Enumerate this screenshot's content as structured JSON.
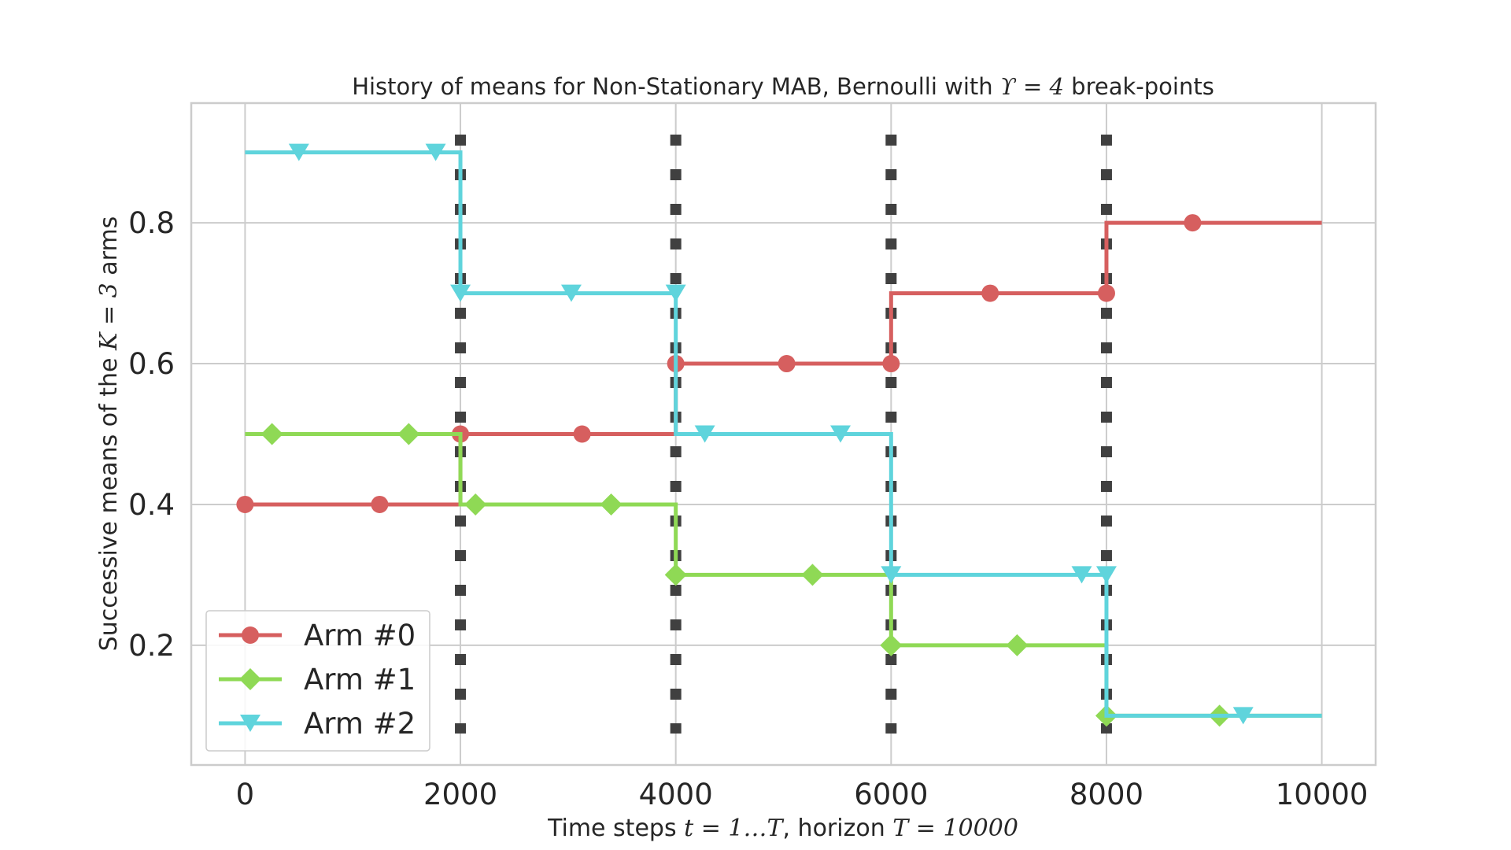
{
  "chart_data": {
    "type": "line",
    "title_parts": {
      "before": "History of means for Non-Stationary MAB, Bernoulli with ",
      "math": "ϒ = 4",
      "after": " break-points"
    },
    "xlabel_parts": {
      "before": "Time steps ",
      "math1": "t = 1…T",
      "middle": ", horizon ",
      "math2": "T = 10000"
    },
    "ylabel_parts": {
      "before": "Successive means of the ",
      "math": "K = 3",
      "after": " arms"
    },
    "xlim": [
      -500,
      10500
    ],
    "ylim": [
      0.03,
      0.97
    ],
    "x_ticks": [
      0,
      2000,
      4000,
      6000,
      8000,
      10000
    ],
    "x_tick_labels": [
      "0",
      "2000",
      "4000",
      "6000",
      "8000",
      "10000"
    ],
    "y_ticks": [
      0.2,
      0.4,
      0.6,
      0.8
    ],
    "y_tick_labels": [
      "0.2",
      "0.4",
      "0.6",
      "0.8"
    ],
    "grid": true,
    "legend_position": "lower-left",
    "break_points": [
      2000,
      4000,
      6000,
      8000
    ],
    "break_point_color": "#404040",
    "series": [
      {
        "name": "Arm #0",
        "color": "#d65f5f",
        "marker": "circle",
        "step_x": [
          0,
          2000,
          4000,
          6000,
          8000,
          10000
        ],
        "step_y": [
          0.4,
          0.5,
          0.6,
          0.7,
          0.8
        ],
        "marker_x": [
          0,
          1250,
          2000,
          3130,
          4000,
          5030,
          6000,
          6920,
          8000,
          8800
        ],
        "marker_y": [
          0.4,
          0.4,
          0.5,
          0.5,
          0.6,
          0.6,
          0.6,
          0.7,
          0.7,
          0.8
        ]
      },
      {
        "name": "Arm #1",
        "color": "#8fd955",
        "marker": "diamond",
        "step_x": [
          0,
          2000,
          4000,
          6000,
          8000,
          10000
        ],
        "step_y": [
          0.5,
          0.4,
          0.3,
          0.2,
          0.1
        ],
        "marker_x": [
          250,
          1520,
          2140,
          3400,
          4000,
          5270,
          6000,
          7170,
          8000,
          9050
        ],
        "marker_y": [
          0.5,
          0.5,
          0.4,
          0.4,
          0.3,
          0.3,
          0.2,
          0.2,
          0.1,
          0.1
        ]
      },
      {
        "name": "Arm #2",
        "color": "#5fd4dc",
        "marker": "triangle-down",
        "step_x": [
          0,
          2000,
          4000,
          6000,
          8000,
          10000
        ],
        "step_y": [
          0.9,
          0.7,
          0.5,
          0.3,
          0.1
        ],
        "marker_x": [
          500,
          1770,
          2000,
          3030,
          4000,
          4270,
          5530,
          6000,
          7770,
          8000,
          9270
        ],
        "marker_y": [
          0.9,
          0.9,
          0.7,
          0.7,
          0.7,
          0.5,
          0.5,
          0.3,
          0.3,
          0.3,
          0.1
        ]
      }
    ]
  }
}
